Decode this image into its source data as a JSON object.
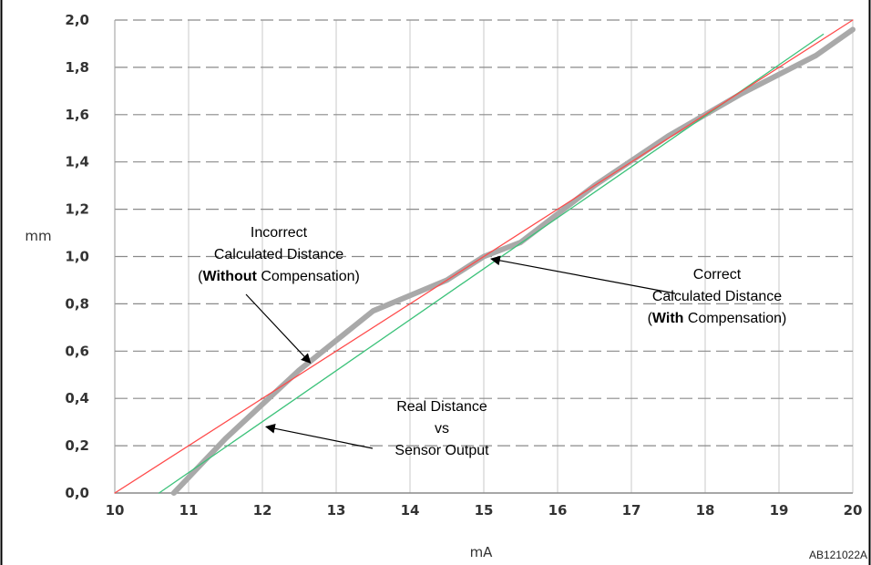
{
  "chart_data": {
    "type": "line",
    "title": "",
    "xlabel": "mA",
    "ylabel": "mm",
    "xlim": [
      10,
      20
    ],
    "ylim": [
      0,
      2
    ],
    "x_ticks": [
      "10",
      "11",
      "12",
      "13",
      "14",
      "15",
      "16",
      "17",
      "18",
      "19",
      "20"
    ],
    "y_ticks": [
      "0,0",
      "0,2",
      "0,4",
      "0,6",
      "0,8",
      "1,0",
      "1,2",
      "1,4",
      "1,6",
      "1,8",
      "2,0"
    ],
    "grid": {
      "horizontal": true,
      "vertical": true,
      "horizontal_style": "dashed"
    },
    "legend": "none",
    "series": [
      {
        "color": "#ff4b4b",
        "x": [
          10,
          20
        ],
        "y": [
          0,
          2.0
        ]
      },
      {
        "color": "#3cc27a",
        "x": [
          10.6,
          19.6
        ],
        "y": [
          0,
          1.94
        ]
      },
      {
        "color": "#a9a9a9",
        "x": [
          10.8,
          11.5,
          12.5,
          13.5,
          14.5,
          15.0,
          15.5,
          16.5,
          17.5,
          18.0,
          18.5,
          19.5,
          20.0
        ],
        "y": [
          0,
          0.23,
          0.52,
          0.77,
          0.9,
          1.0,
          1.06,
          1.3,
          1.51,
          1.6,
          1.69,
          1.85,
          1.96
        ]
      }
    ],
    "annotations": [
      {
        "lines": [
          [
            {
              "t": "Incorrect"
            }
          ],
          [
            {
              "t": "Calculated Distance"
            }
          ],
          [
            {
              "t": "("
            },
            {
              "t": "Without",
              "bold": true
            },
            {
              "t": " Compensation)"
            }
          ]
        ],
        "arrow_to": [
          12.65,
          0.55
        ]
      },
      {
        "lines": [
          [
            {
              "t": "Correct"
            }
          ],
          [
            {
              "t": "Calculated Distance"
            }
          ],
          [
            {
              "t": "("
            },
            {
              "t": "With",
              "bold": true
            },
            {
              "t": " Compensation)"
            }
          ]
        ],
        "arrow_to": [
          15.1,
          0.99
        ]
      },
      {
        "lines": [
          [
            {
              "t": "Real Distance"
            }
          ],
          [
            {
              "t": "vs"
            }
          ],
          [
            {
              "t": "Sensor Output"
            }
          ]
        ],
        "arrow_to": [
          12.05,
          0.28
        ]
      }
    ]
  },
  "figure_code": "AB121022A"
}
